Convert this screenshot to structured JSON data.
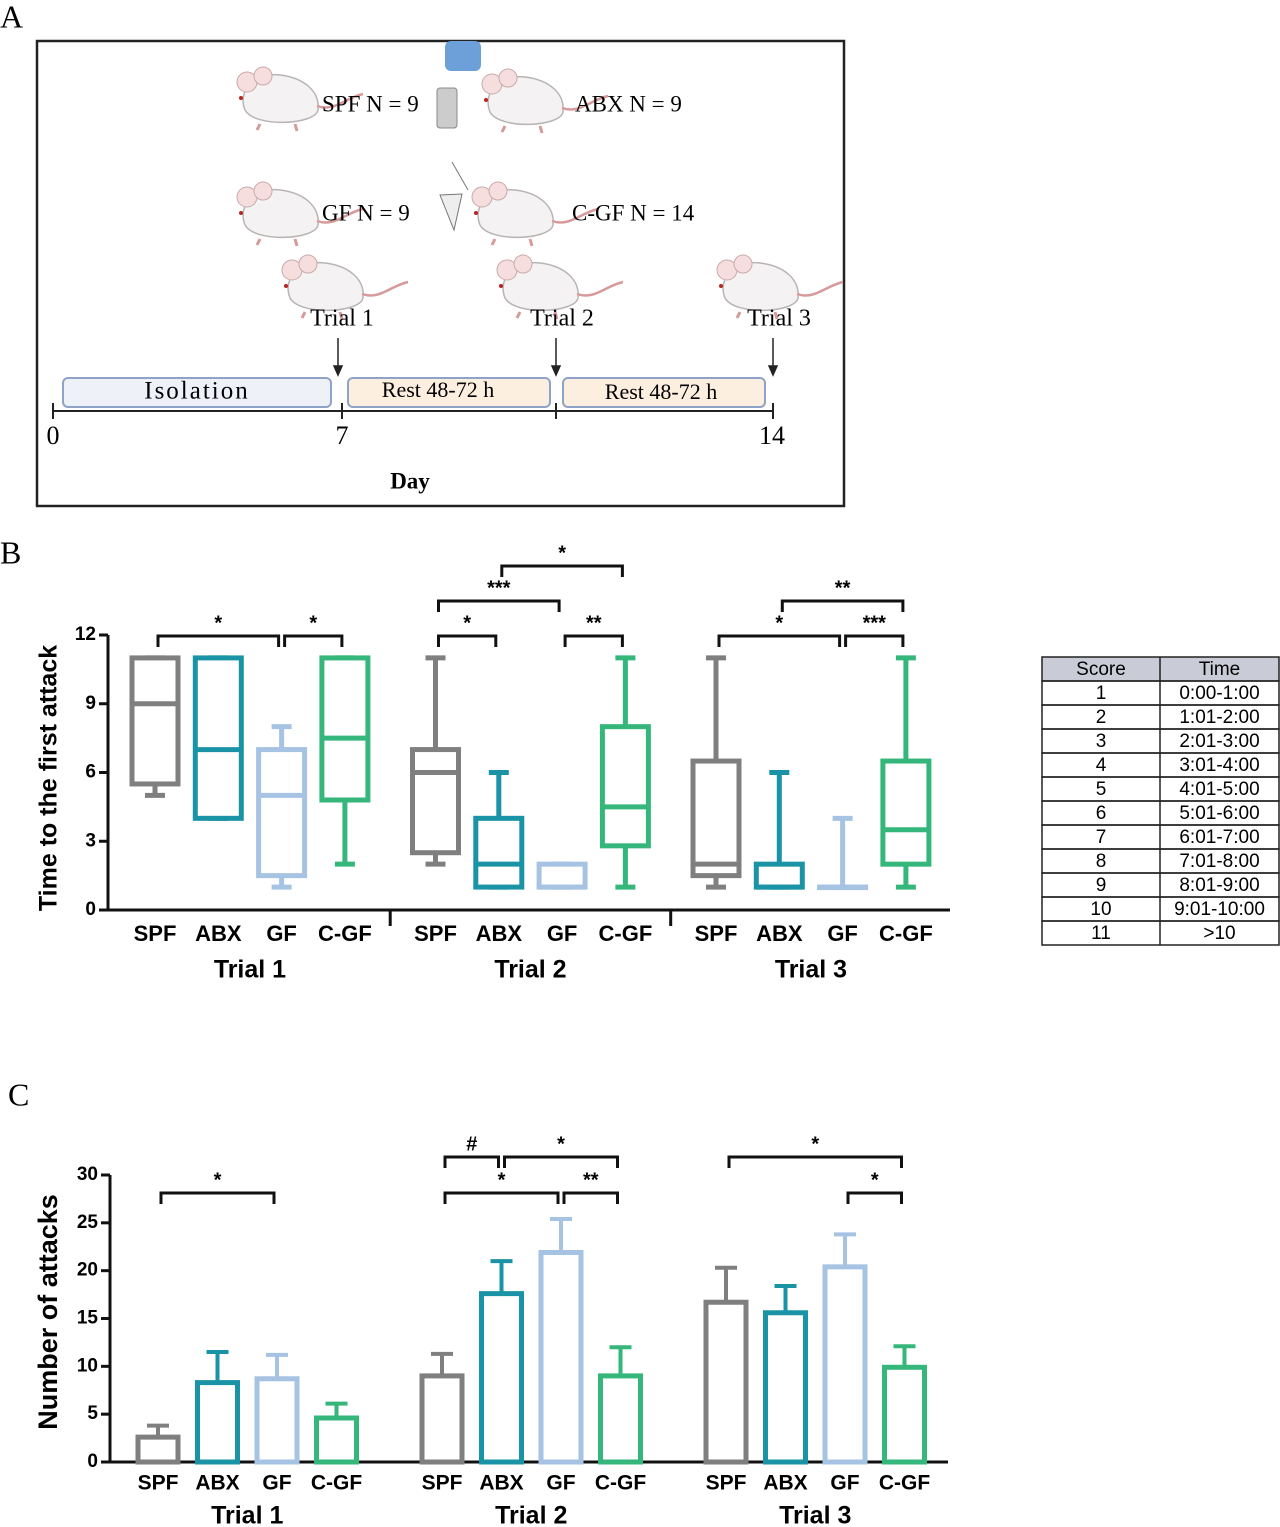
{
  "panel_a": {
    "label": "A",
    "groups": [
      "SPF  N = 9",
      "ABX  N = 9",
      "GF  N = 9",
      "C-GF  N = 14"
    ],
    "trials": [
      "Trial 1",
      "Trial 2",
      "Trial 3"
    ],
    "phases": [
      "Isolation",
      "Rest 48-72 h",
      "Rest 48-72 h"
    ],
    "day_ticks": [
      "0",
      "7",
      "14"
    ],
    "axis_label": "Day"
  },
  "chart_data": [
    {
      "type": "box",
      "panel_label": "B",
      "y_label": "Time to the first attack",
      "groups": [
        "SPF",
        "ABX",
        "GF",
        "C-GF"
      ],
      "colors": [
        "#7f7f7f",
        "#1b93a6",
        "#a6c3e3",
        "#35b67a"
      ],
      "ylim": [
        0,
        12
      ],
      "yticks": [
        0,
        3,
        6,
        9,
        12
      ],
      "trials": [
        {
          "name": "Trial 1",
          "boxes": [
            {
              "min": 5,
              "q1": 5.5,
              "median": 9,
              "q3": 11,
              "max": 11
            },
            {
              "min": 4,
              "q1": 4,
              "median": 7,
              "q3": 11,
              "max": 11
            },
            {
              "min": 1,
              "q1": 1.5,
              "median": 5,
              "q3": 7,
              "max": 8
            },
            {
              "min": 2,
              "q1": 4.8,
              "median": 7.5,
              "q3": 11,
              "max": 11
            }
          ],
          "brackets": [
            {
              "from": "SPF",
              "to": "GF",
              "label": "*"
            },
            {
              "from": "GF",
              "to": "C-GF",
              "label": "*"
            }
          ]
        },
        {
          "name": "Trial 2",
          "boxes": [
            {
              "min": 2,
              "q1": 2.5,
              "median": 6,
              "q3": 7,
              "max": 11
            },
            {
              "min": 1,
              "q1": 1,
              "median": 2,
              "q3": 4,
              "max": 6
            },
            {
              "min": 1,
              "q1": 1,
              "median": 1,
              "q3": 2,
              "max": 2
            },
            {
              "min": 1,
              "q1": 2.8,
              "median": 4.5,
              "q3": 8,
              "max": 11
            }
          ],
          "brackets": [
            {
              "from": "SPF",
              "to": "ABX",
              "label": "*"
            },
            {
              "from": "GF",
              "to": "C-GF",
              "label": "**"
            },
            {
              "from": "SPF",
              "to": "GF",
              "label": "***"
            },
            {
              "from": "ABX",
              "to": "C-GF",
              "label": "*"
            }
          ]
        },
        {
          "name": "Trial 3",
          "boxes": [
            {
              "min": 1,
              "q1": 1.5,
              "median": 2,
              "q3": 6.5,
              "max": 11
            },
            {
              "min": 1,
              "q1": 1,
              "median": 1,
              "q3": 2,
              "max": 6
            },
            {
              "min": 1,
              "q1": 1,
              "median": 1,
              "q3": 1,
              "max": 4
            },
            {
              "min": 1,
              "q1": 2,
              "median": 3.5,
              "q3": 6.5,
              "max": 11
            }
          ],
          "brackets": [
            {
              "from": "SPF",
              "to": "GF",
              "label": "*"
            },
            {
              "from": "GF",
              "to": "C-GF",
              "label": "***"
            },
            {
              "from": "ABX",
              "to": "C-GF",
              "label": "**"
            }
          ]
        }
      ]
    },
    {
      "type": "bar",
      "panel_label": "C",
      "y_label": "Number of attacks",
      "groups": [
        "SPF",
        "ABX",
        "GF",
        "C-GF"
      ],
      "colors": [
        "#7f7f7f",
        "#1b93a6",
        "#a6c3e3",
        "#35b67a"
      ],
      "ylim": [
        0,
        30
      ],
      "yticks": [
        0,
        5,
        10,
        15,
        20,
        25,
        30
      ],
      "trials": [
        {
          "name": "Trial 1",
          "values": [
            2.6,
            8.3,
            8.7,
            4.6
          ],
          "errors": [
            1.2,
            3.2,
            2.5,
            1.5
          ],
          "brackets": [
            {
              "from": "SPF",
              "to": "GF",
              "label": "*"
            }
          ]
        },
        {
          "name": "Trial 2",
          "values": [
            9,
            17.6,
            21.9,
            9
          ],
          "errors": [
            2.3,
            3.4,
            3.5,
            3
          ],
          "brackets": [
            {
              "from": "SPF",
              "to": "GF",
              "label": "*"
            },
            {
              "from": "GF",
              "to": "C-GF",
              "label": "**"
            },
            {
              "from": "ABX",
              "to": "C-GF",
              "label": "*"
            },
            {
              "from": "SPF",
              "to": "ABX",
              "label": "#"
            }
          ]
        },
        {
          "name": "Trial 3",
          "values": [
            16.7,
            15.6,
            20.4,
            9.9
          ],
          "errors": [
            3.6,
            2.8,
            3.4,
            2.2
          ],
          "brackets": [
            {
              "from": "GF",
              "to": "C-GF",
              "label": "*"
            },
            {
              "from": "SPF",
              "to": "C-GF",
              "label": "*"
            }
          ]
        }
      ]
    }
  ],
  "score_table": {
    "header": [
      "Score",
      "Time"
    ],
    "rows": [
      [
        1,
        "0:00-1:00"
      ],
      [
        2,
        "1:01-2:00"
      ],
      [
        3,
        "2:01-3:00"
      ],
      [
        4,
        "3:01-4:00"
      ],
      [
        5,
        "4:01-5:00"
      ],
      [
        6,
        "5:01-6:00"
      ],
      [
        7,
        "6:01-7:00"
      ],
      [
        8,
        "7:01-8:00"
      ],
      [
        9,
        "8:01-9:00"
      ],
      [
        10,
        "9:01-10:00"
      ],
      [
        11,
        ">10"
      ]
    ]
  }
}
